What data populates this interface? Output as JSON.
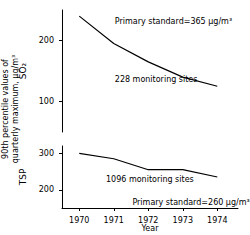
{
  "chart_data": {
    "type": "line",
    "ylabel": "90th percentile values of\nquarterly maximum, μg/m³",
    "xlabel": "Year",
    "x": [
      1970,
      1971,
      1972,
      1973,
      1974
    ],
    "xlim": [
      1969.5,
      1974.6
    ],
    "xticks": [
      1970,
      1971,
      1972,
      1973,
      1974
    ],
    "grid": false,
    "panels": [
      {
        "label": "SO₂",
        "color": "#000000",
        "values": [
          240,
          195,
          165,
          140,
          125
        ],
        "ylim": [
          50,
          250
        ],
        "yticks": [
          100,
          200
        ],
        "annotations": [
          "Primary standard=365 μg/m³",
          "228 monitoring sites"
        ]
      },
      {
        "label": "TSP",
        "color": "#000000",
        "values": [
          300,
          285,
          255,
          255,
          235
        ],
        "ylim": [
          150,
          320
        ],
        "yticks": [
          200,
          300
        ],
        "annotations": [
          "1096 monitoring sites",
          "Primary standard=260 μg/m³"
        ]
      }
    ]
  }
}
